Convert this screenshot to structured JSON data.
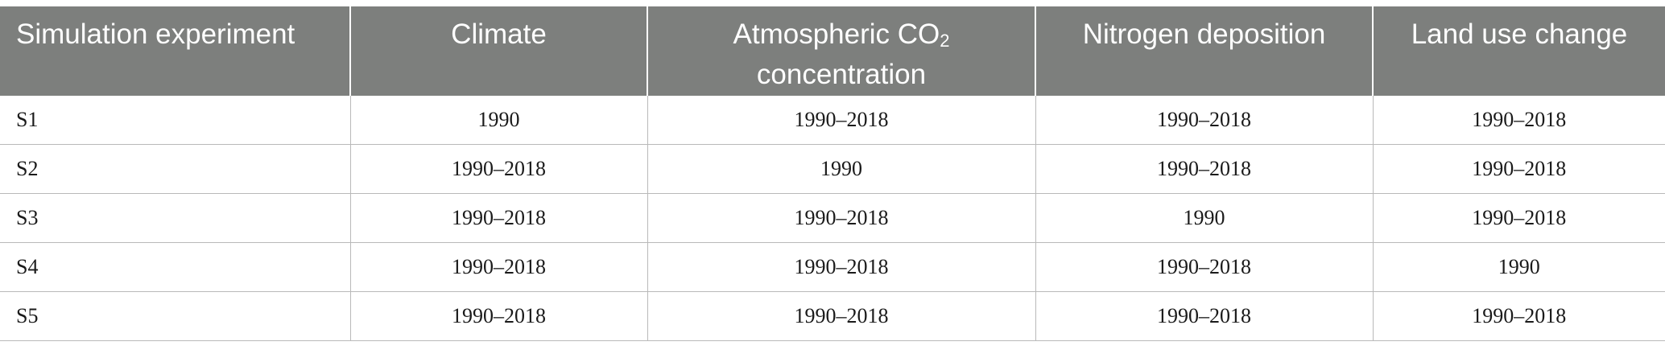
{
  "table": {
    "headers": {
      "simulation": "Simulation experiment",
      "climate": "Climate",
      "co2_line1_prefix": "Atmospheric CO",
      "co2_sub": "2",
      "co2_line2": "concentration",
      "nitrogen": "Nitrogen deposition",
      "land_use": "Land use change"
    },
    "rows": [
      [
        "S1",
        "1990",
        "1990–2018",
        "1990–2018",
        "1990–2018"
      ],
      [
        "S2",
        "1990–2018",
        "1990",
        "1990–2018",
        "1990–2018"
      ],
      [
        "S3",
        "1990–2018",
        "1990–2018",
        "1990",
        "1990–2018"
      ],
      [
        "S4",
        "1990–2018",
        "1990–2018",
        "1990–2018",
        "1990"
      ],
      [
        "S5",
        "1990–2018",
        "1990–2018",
        "1990–2018",
        "1990–2018"
      ]
    ]
  },
  "colors": {
    "header_background": "#7d7f7d",
    "header_text": "#ffffff",
    "grid_lines": "#b9b9b9"
  }
}
